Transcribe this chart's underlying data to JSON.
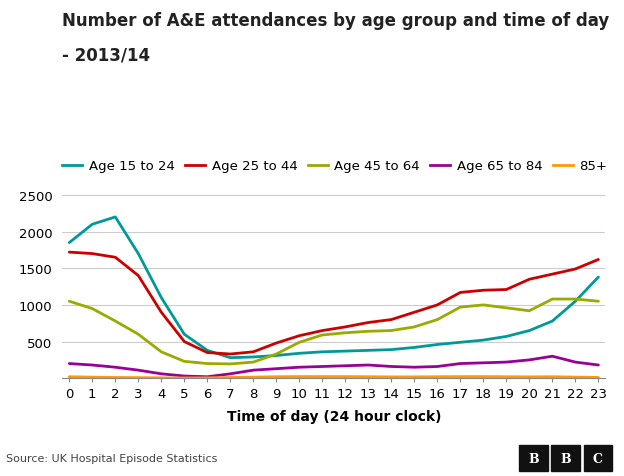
{
  "title_line1": "Number of A&E attendances by age group and time of day",
  "title_line2": "- 2013/14",
  "xlabel": "Time of day (24 hour clock)",
  "source": "Source: UK Hospital Episode Statistics",
  "x": [
    0,
    1,
    2,
    3,
    4,
    5,
    6,
    7,
    8,
    9,
    10,
    11,
    12,
    13,
    14,
    15,
    16,
    17,
    18,
    19,
    20,
    21,
    22,
    23
  ],
  "age_15_24": [
    1850,
    2100,
    2200,
    1700,
    1100,
    600,
    380,
    280,
    290,
    310,
    340,
    360,
    370,
    380,
    390,
    420,
    460,
    490,
    520,
    570,
    650,
    780,
    1050,
    1380
  ],
  "age_25_44": [
    1720,
    1700,
    1650,
    1400,
    900,
    500,
    350,
    330,
    360,
    480,
    580,
    650,
    700,
    760,
    800,
    900,
    1000,
    1170,
    1200,
    1210,
    1350,
    1420,
    1490,
    1620
  ],
  "age_45_64": [
    1050,
    950,
    780,
    600,
    360,
    230,
    200,
    195,
    220,
    330,
    490,
    590,
    620,
    640,
    650,
    700,
    800,
    970,
    1000,
    960,
    920,
    1080,
    1080,
    1050
  ],
  "age_65_84": [
    200,
    180,
    150,
    110,
    60,
    30,
    20,
    60,
    110,
    130,
    150,
    160,
    170,
    180,
    160,
    150,
    160,
    200,
    210,
    220,
    250,
    300,
    220,
    180
  ],
  "age_85plus": [
    20,
    15,
    10,
    8,
    5,
    3,
    5,
    10,
    15,
    20,
    22,
    22,
    22,
    20,
    18,
    18,
    20,
    22,
    22,
    20,
    18,
    20,
    15,
    10
  ],
  "color_15_24": "#009999",
  "color_25_44": "#cc0000",
  "color_45_64": "#99aa00",
  "color_65_84": "#990099",
  "color_85plus": "#ff9900",
  "legend_labels": [
    "Age 15 to 24",
    "Age 25 to 44",
    "Age 45 to 64",
    "Age 65 to 84",
    "85+"
  ],
  "ylim": [
    0,
    2700
  ],
  "yticks": [
    0,
    500,
    1000,
    1500,
    2000,
    2500
  ],
  "background_color": "#ffffff",
  "footer_color": "#f0f0f0",
  "grid_color": "#cccccc",
  "title_fontsize": 12,
  "label_fontsize": 10,
  "tick_fontsize": 9.5,
  "legend_fontsize": 9.5
}
